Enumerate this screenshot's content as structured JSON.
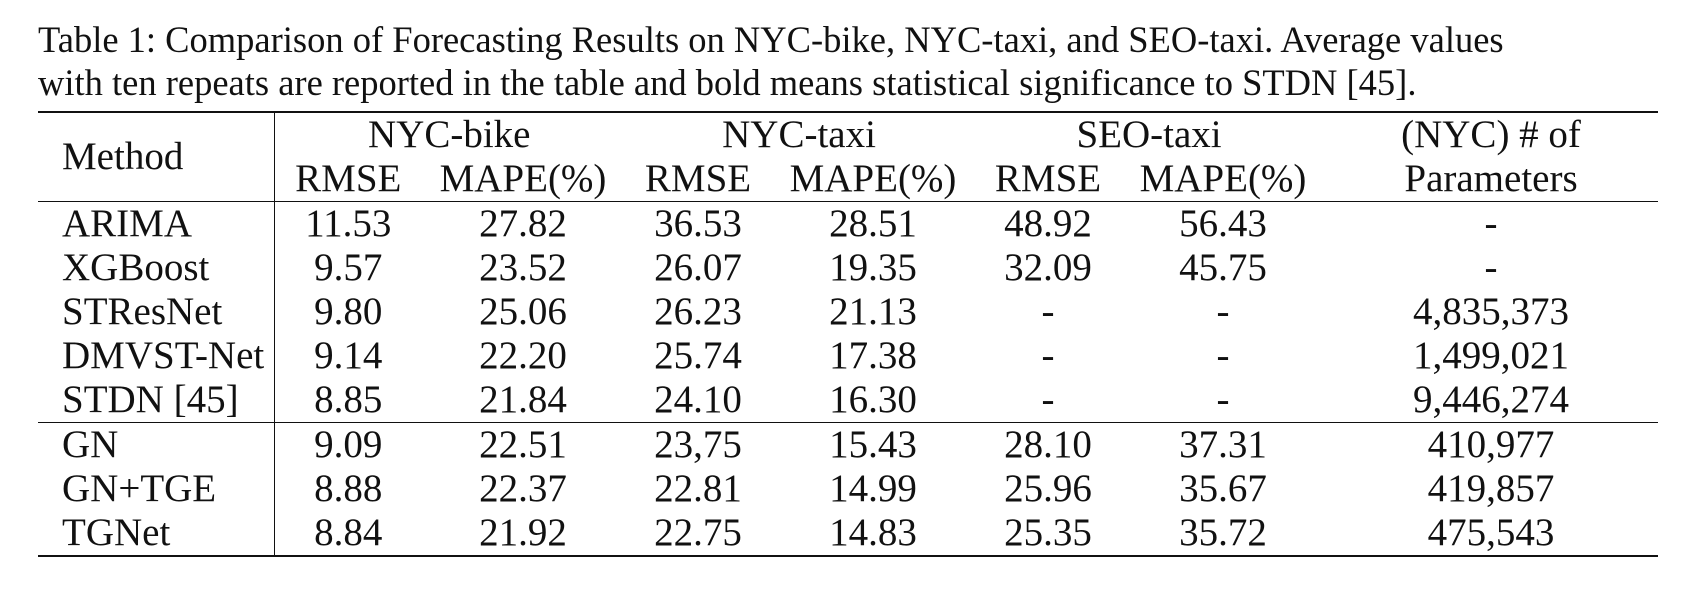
{
  "caption": {
    "line1": "Table 1: Comparison of Forecasting Results on NYC-bike, NYC-taxi, and SEO-taxi. Average values",
    "line2": "with ten repeats are reported in the table and bold means statistical significance to STDN [45]."
  },
  "table": {
    "header": {
      "method": "Method",
      "groups": [
        "NYC-bike",
        "NYC-taxi",
        "SEO-taxi"
      ],
      "params_line1": "(NYC) # of",
      "params_line2": "Parameters",
      "sub": [
        "RMSE",
        "MAPE(%)",
        "RMSE",
        "MAPE(%)",
        "RMSE",
        "MAPE(%)"
      ]
    },
    "rows": [
      {
        "method": "ARIMA",
        "cells": [
          "11.53",
          "27.82",
          "36.53",
          "28.51",
          "48.92",
          "56.43",
          "-"
        ],
        "bold": []
      },
      {
        "method": "XGBoost",
        "cells": [
          "9.57",
          "23.52",
          "26.07",
          "19.35",
          "32.09",
          "45.75",
          "-"
        ],
        "bold": []
      },
      {
        "method": "STResNet",
        "cells": [
          "9.80",
          "25.06",
          "26.23",
          "21.13",
          "-",
          "-",
          "4,835,373"
        ],
        "bold": []
      },
      {
        "method": "DMVST-Net",
        "cells": [
          "9.14",
          "22.20",
          "25.74",
          "17.38",
          "-",
          "-",
          "1,499,021"
        ],
        "bold": []
      },
      {
        "method": "STDN [45]",
        "cells": [
          "8.85",
          "21.84",
          "24.10",
          "16.30",
          "-",
          "-",
          "9,446,274"
        ],
        "bold": []
      },
      {
        "method": "GN",
        "cells": [
          "9.09",
          "22.51",
          "23,75",
          "15.43",
          "28.10",
          "37.31",
          "410,977"
        ],
        "bold": []
      },
      {
        "method": "GN+TGE",
        "cells": [
          "8.88",
          "22.37",
          "22.81",
          "14.99",
          "25.96",
          "35.67",
          "419,857"
        ],
        "bold": [
          5
        ]
      },
      {
        "method": "TGNet",
        "cells": [
          "8.84",
          "21.92",
          "22.75",
          "14.83",
          "25.35",
          "35.72",
          "475,543"
        ],
        "bold": [
          2,
          3,
          4
        ]
      }
    ]
  }
}
